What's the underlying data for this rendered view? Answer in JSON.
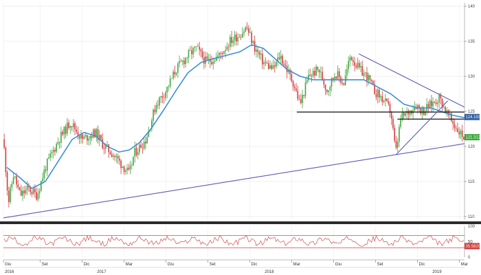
{
  "chart_data": {
    "type": "candlestick",
    "xlabel": "",
    "ylabel": "",
    "main_panel": {
      "ylim": [
        109.5,
        140.5
      ],
      "yticks": [
        110,
        115,
        120,
        125,
        130,
        135,
        140
      ],
      "grid": true,
      "moving_average_color": "#3a8fd6",
      "up_color": "#3ca83c",
      "down_color": "#d23a3a",
      "trendline_color": "#5a5ab4",
      "level_color": "#111111",
      "price_series": [
        [
          2016.45,
          121
        ],
        [
          2016.48,
          112
        ],
        [
          2016.51,
          116
        ],
        [
          2016.55,
          113
        ],
        [
          2016.6,
          114
        ],
        [
          2016.65,
          113
        ],
        [
          2016.7,
          117
        ],
        [
          2016.78,
          121
        ],
        [
          2016.85,
          123.5
        ],
        [
          2016.92,
          121
        ],
        [
          2017.0,
          122
        ],
        [
          2017.05,
          120
        ],
        [
          2017.1,
          119
        ],
        [
          2017.17,
          117
        ],
        [
          2017.2,
          116
        ],
        [
          2017.23,
          119
        ],
        [
          2017.3,
          121
        ],
        [
          2017.36,
          126
        ],
        [
          2017.42,
          128
        ],
        [
          2017.48,
          131
        ],
        [
          2017.55,
          133
        ],
        [
          2017.6,
          134
        ],
        [
          2017.66,
          132
        ],
        [
          2017.74,
          133
        ],
        [
          2017.8,
          135
        ],
        [
          2017.86,
          136
        ],
        [
          2017.9,
          137
        ],
        [
          2017.95,
          134
        ],
        [
          2018.0,
          132
        ],
        [
          2018.06,
          131
        ],
        [
          2018.1,
          133
        ],
        [
          2018.14,
          131
        ],
        [
          2018.18,
          129
        ],
        [
          2018.22,
          126
        ],
        [
          2018.27,
          130
        ],
        [
          2018.33,
          131
        ],
        [
          2018.38,
          128
        ],
        [
          2018.43,
          130.5
        ],
        [
          2018.48,
          129
        ],
        [
          2018.52,
          133
        ],
        [
          2018.57,
          131
        ],
        [
          2018.62,
          130
        ],
        [
          2018.66,
          128
        ],
        [
          2018.72,
          126.5
        ],
        [
          2018.76,
          125
        ],
        [
          2018.79,
          119
        ],
        [
          2018.82,
          124
        ],
        [
          2018.87,
          125
        ],
        [
          2018.91,
          126
        ],
        [
          2018.95,
          125
        ],
        [
          2019.0,
          126
        ],
        [
          2019.05,
          127
        ],
        [
          2019.1,
          124.5
        ],
        [
          2019.14,
          123
        ],
        [
          2019.17,
          122
        ],
        [
          2019.2,
          121.3
        ]
      ],
      "moving_average": [
        [
          2016.47,
          117
        ],
        [
          2016.55,
          115.5
        ],
        [
          2016.62,
          114
        ],
        [
          2016.7,
          115
        ],
        [
          2016.78,
          118
        ],
        [
          2016.86,
          121
        ],
        [
          2016.93,
          122
        ],
        [
          2017.0,
          121.5
        ],
        [
          2017.07,
          120
        ],
        [
          2017.14,
          119.2
        ],
        [
          2017.2,
          119.5
        ],
        [
          2017.26,
          120.5
        ],
        [
          2017.33,
          122.5
        ],
        [
          2017.4,
          125
        ],
        [
          2017.48,
          128
        ],
        [
          2017.55,
          130.5
        ],
        [
          2017.63,
          132
        ],
        [
          2017.7,
          132.5
        ],
        [
          2017.78,
          133
        ],
        [
          2017.86,
          133.5
        ],
        [
          2017.93,
          134.5
        ],
        [
          2018.0,
          134
        ],
        [
          2018.07,
          132.5
        ],
        [
          2018.14,
          131
        ],
        [
          2018.22,
          130
        ],
        [
          2018.3,
          129.5
        ],
        [
          2018.38,
          129.5
        ],
        [
          2018.45,
          129.5
        ],
        [
          2018.52,
          129.5
        ],
        [
          2018.6,
          129.5
        ],
        [
          2018.68,
          128.5
        ],
        [
          2018.76,
          127.5
        ],
        [
          2018.84,
          126
        ],
        [
          2018.92,
          125.5
        ],
        [
          2019.0,
          125.5
        ],
        [
          2019.06,
          125
        ],
        [
          2019.12,
          124.5
        ],
        [
          2019.2,
          124.1
        ]
      ],
      "trendlines": [
        {
          "from": [
            2016.45,
            109.8
          ],
          "to": [
            2019.2,
            120.4
          ]
        },
        {
          "from": [
            2018.57,
            133.2
          ],
          "to": [
            2019.2,
            125.6
          ]
        },
        {
          "from": [
            2018.79,
            118.8
          ],
          "to": [
            2019.1,
            126.5
          ]
        }
      ],
      "levels": [
        {
          "from": 2018.2,
          "to": 2019.2,
          "y": 124.9
        },
        {
          "from": 2018.8,
          "to": 2019.2,
          "y": 123.9
        }
      ],
      "price_tags": [
        {
          "label": "124.1937",
          "value": 124.1937,
          "color": "#2f5fa0"
        },
        {
          "label": "121.3125",
          "value": 121.3125,
          "color": "#3ca83c"
        }
      ]
    },
    "rsi_panel": {
      "ylim": [
        0,
        100
      ],
      "yticks": [
        100,
        50,
        0
      ],
      "upper_level": 70,
      "lower_level": 30,
      "level_color": "#d24a4a",
      "line_color": "#d24a4a",
      "tag": {
        "label": "35.5820",
        "value": 35.582,
        "color": "#d23a3a"
      }
    },
    "x_axis": {
      "xlim": [
        2016.45,
        2019.2
      ],
      "months": [
        {
          "label": "Giu",
          "x": 2016.45
        },
        {
          "label": "Set",
          "x": 2016.67
        },
        {
          "label": "Dic",
          "x": 2016.92
        },
        {
          "label": "Mar",
          "x": 2017.17
        },
        {
          "label": "Giu",
          "x": 2017.42
        },
        {
          "label": "Set",
          "x": 2017.67
        },
        {
          "label": "Dic",
          "x": 2017.92
        },
        {
          "label": "Mar",
          "x": 2018.17
        },
        {
          "label": "Giu",
          "x": 2018.42
        },
        {
          "label": "Set",
          "x": 2018.67
        },
        {
          "label": "Dic",
          "x": 2018.92
        },
        {
          "label": "Mar",
          "x": 2019.17
        }
      ],
      "years": [
        {
          "label": "2016",
          "x": 2016.45
        },
        {
          "label": "2017",
          "x": 2017.0
        },
        {
          "label": "2018",
          "x": 2018.0
        },
        {
          "label": "2019",
          "x": 2019.0
        }
      ]
    }
  }
}
